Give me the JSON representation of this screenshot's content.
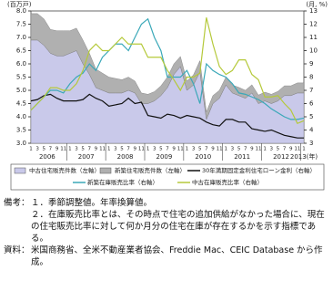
{
  "chart_data": {
    "type": "combo",
    "y_label": "(百万戸)",
    "y2_label": "(月, %)",
    "categories": [
      "1",
      "3",
      "5",
      "7",
      "9",
      "11",
      "1",
      "3",
      "5",
      "7",
      "9",
      "11",
      "1",
      "3",
      "5",
      "7",
      "9",
      "11",
      "1",
      "3",
      "5",
      "7",
      "9",
      "11",
      "1",
      "3",
      "5",
      "7",
      "9",
      "11",
      "1",
      "3",
      "5",
      "7",
      "9",
      "11",
      "1",
      "3",
      "5",
      "7",
      "9",
      "11",
      "1"
    ],
    "x_groups": [
      "2006",
      "2007",
      "2008",
      "2009",
      "2010",
      "2011",
      "2012",
      "2013(年)"
    ],
    "ylim": [
      3,
      8
    ],
    "yticks": [
      {
        "value": 3,
        "label": "3.0"
      },
      3.5,
      {
        "value": 4,
        "label": "4.0"
      },
      4.5,
      {
        "value": 5,
        "label": "5.0"
      },
      5.5,
      {
        "value": 6,
        "label": "6.0"
      },
      6.5,
      {
        "value": 7,
        "label": "7.0"
      },
      7.5,
      {
        "value": 8,
        "label": "8.0"
      }
    ],
    "y2lim": [
      3,
      13
    ],
    "y2ticks": [
      3,
      4,
      5,
      6,
      7,
      8,
      9,
      10,
      11,
      12,
      13
    ],
    "grid": false,
    "series": [
      {
        "name": "中古住宅販売件数（左軸）",
        "mark": "area",
        "color": "#c9c9ea",
        "values": [
          6.9,
          6.9,
          6.7,
          6.4,
          6.3,
          6.3,
          6.4,
          6.5,
          6.0,
          5.6,
          5.1,
          5.0,
          4.9,
          4.9,
          4.9,
          5.0,
          4.9,
          4.5,
          4.5,
          4.6,
          4.8,
          5.1,
          5.6,
          5.9,
          5.0,
          5.2,
          5.7,
          3.9,
          4.5,
          4.7,
          5.2,
          4.9,
          4.8,
          4.7,
          4.9,
          4.5,
          4.6,
          4.5,
          4.6,
          4.8,
          4.8,
          4.9,
          4.9
        ]
      },
      {
        "name": "新築住宅販売件数（左軸）",
        "mark": "area",
        "stacked": true,
        "color": "#b0b0b0",
        "values": [
          1.0,
          1.0,
          1.0,
          0.9,
          0.95,
          0.95,
          0.85,
          0.85,
          0.9,
          0.8,
          0.7,
          0.65,
          0.6,
          0.55,
          0.5,
          0.5,
          0.45,
          0.4,
          0.35,
          0.35,
          0.37,
          0.4,
          0.4,
          0.38,
          0.35,
          0.38,
          0.42,
          0.28,
          0.3,
          0.3,
          0.3,
          0.3,
          0.31,
          0.3,
          0.31,
          0.32,
          0.33,
          0.35,
          0.36,
          0.37,
          0.37,
          0.38,
          0.38
        ]
      },
      {
        "name": "30年満期固定金利住宅ローン金利（右軸）",
        "mark": "line",
        "axis": "y2",
        "color": "#111111",
        "values": [
          6.2,
          6.3,
          6.6,
          6.7,
          6.4,
          6.2,
          6.2,
          6.2,
          6.3,
          6.7,
          6.4,
          6.2,
          5.8,
          5.9,
          6.0,
          6.4,
          6.0,
          6.1,
          5.1,
          5.0,
          4.9,
          5.2,
          5.1,
          4.9,
          5.1,
          5.0,
          4.9,
          4.6,
          4.4,
          4.3,
          4.8,
          4.8,
          4.6,
          4.6,
          4.1,
          4.0,
          3.9,
          4.0,
          3.8,
          3.6,
          3.5,
          3.4,
          3.4
        ]
      },
      {
        "name": "新築在庫販売比率（右軸）",
        "mark": "line",
        "axis": "y2",
        "color": "#3aa8b8",
        "values": [
          5.5,
          6.0,
          6.5,
          7.0,
          7.0,
          6.8,
          7.5,
          8.0,
          8.3,
          9.0,
          8.5,
          9.5,
          10.0,
          10.5,
          10.5,
          10.0,
          11.0,
          12.0,
          12.4,
          11.0,
          10.0,
          8.0,
          8.0,
          8.0,
          8.5,
          7.5,
          6.0,
          9.0,
          8.5,
          8.2,
          8.0,
          7.5,
          6.8,
          6.7,
          6.5,
          6.3,
          6.0,
          5.6,
          5.3,
          5.0,
          4.8,
          4.8,
          4.9
        ]
      },
      {
        "name": "中古在庫販売比率（右軸）",
        "mark": "line",
        "axis": "y2",
        "color": "#b5c93a",
        "values": [
          5.5,
          6.0,
          6.5,
          7.2,
          7.2,
          7.0,
          7.0,
          7.5,
          8.5,
          10.0,
          10.5,
          10.0,
          10.0,
          10.5,
          11.0,
          10.5,
          10.5,
          10.5,
          9.5,
          9.5,
          9.5,
          8.5,
          7.8,
          7.0,
          8.0,
          8.0,
          8.3,
          12.5,
          10.5,
          8.8,
          8.2,
          8.5,
          9.3,
          9.3,
          8.2,
          7.8,
          6.5,
          6.5,
          6.6,
          6.0,
          5.5,
          4.5,
          4.7
        ]
      }
    ]
  },
  "notes": {
    "label": "備考：",
    "items": [
      "１．季節調整値。年率換算値。",
      "２．在庫販売比率とは、その時点で住宅の追加供給がなかった場合に、現在の住宅販売比率に対して何か月分の住宅在庫が存在するかを示す指標である。"
    ]
  },
  "source": {
    "label": "資料：",
    "text": "米国商務省、全米不動産業者協会、Freddie Mac、CEIC Database から作成。"
  }
}
